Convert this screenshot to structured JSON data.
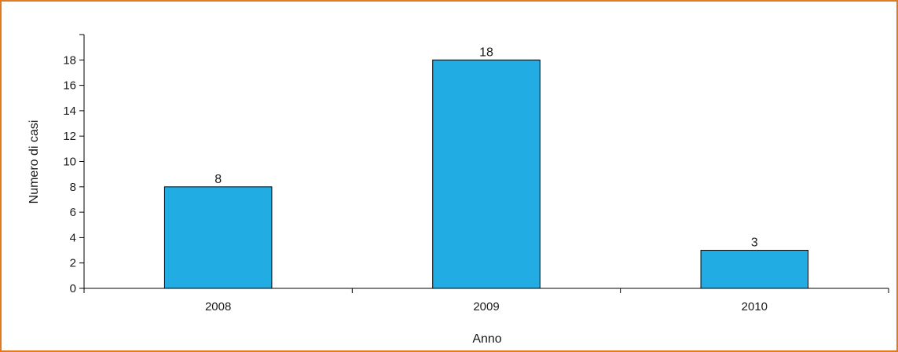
{
  "chart_data": {
    "type": "bar",
    "categories": [
      "2008",
      "2009",
      "2010"
    ],
    "values": [
      8,
      18,
      3
    ],
    "xlabel": "Anno",
    "ylabel": "Numero di casi",
    "ylim": [
      0,
      20
    ],
    "yticks": [
      0,
      2,
      4,
      6,
      8,
      10,
      12,
      14,
      16,
      18
    ],
    "grid": false,
    "legend": "none",
    "colors": {
      "bar": "#21ade4",
      "bar_outline": "#000000",
      "frame": "#e07b1f"
    }
  }
}
